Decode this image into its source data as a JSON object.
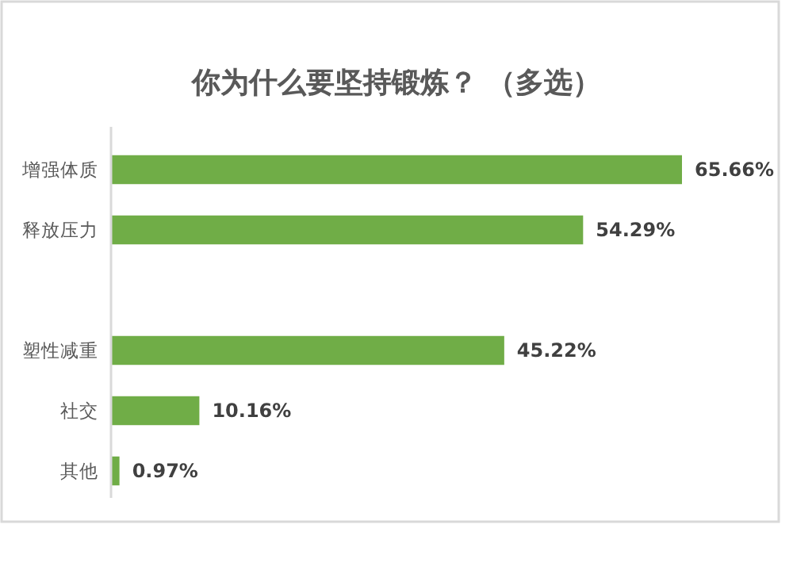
{
  "chart_data": {
    "type": "bar",
    "orientation": "horizontal",
    "title": "你为什么要坚持锻炼？ （多选）",
    "categories": [
      "增强体质",
      "释放压力",
      null,
      "塑性减重",
      "社交",
      "其他"
    ],
    "values": [
      65.66,
      54.29,
      null,
      45.22,
      10.16,
      0.97
    ],
    "value_labels": [
      "65.66%",
      "54.29%",
      null,
      "45.22%",
      "10.16%",
      "0.97%"
    ],
    "color": "#70ad47"
  }
}
